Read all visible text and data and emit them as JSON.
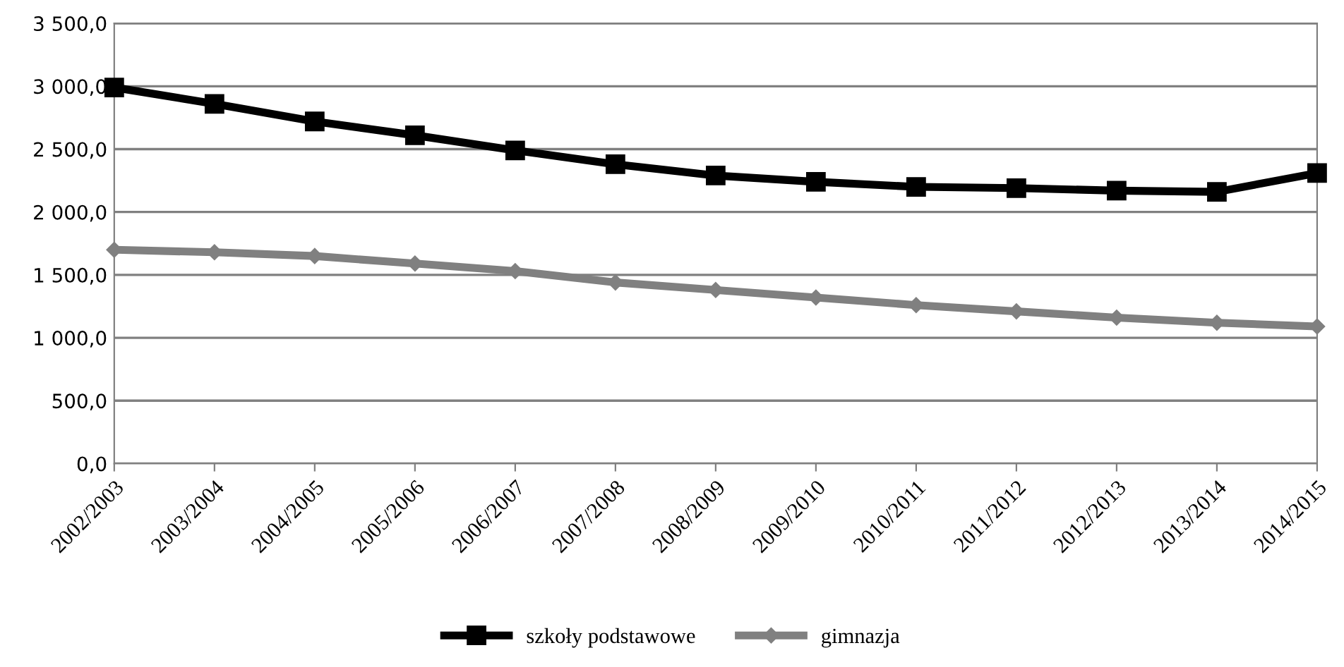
{
  "chart_data": {
    "type": "line",
    "categories": [
      "2002/2003",
      "2003/2004",
      "2004/2005",
      "2005/2006",
      "2006/2007",
      "2007/2008",
      "2008/2009",
      "2009/2010",
      "2010/2011",
      "2011/2012",
      "2012/2013",
      "2013/2014",
      "2014/2015"
    ],
    "series": [
      {
        "name": "szkoły podstawowe",
        "color": "#000000",
        "marker": "square",
        "values": [
          2990,
          2860,
          2720,
          2610,
          2490,
          2380,
          2290,
          2240,
          2200,
          2190,
          2170,
          2160,
          2310
        ]
      },
      {
        "name": "gimnazja",
        "color": "#808080",
        "marker": "diamond",
        "values": [
          1700,
          1680,
          1650,
          1590,
          1530,
          1440,
          1380,
          1320,
          1260,
          1210,
          1160,
          1120,
          1090
        ]
      }
    ],
    "ylim": [
      0,
      3500
    ],
    "yticks": [
      {
        "value": 0,
        "label": "0,0"
      },
      {
        "value": 500,
        "label": "500,0"
      },
      {
        "value": 1000,
        "label": "1 000,0"
      },
      {
        "value": 1500,
        "label": "1 500,0"
      },
      {
        "value": 2000,
        "label": "2 000,0"
      },
      {
        "value": 2500,
        "label": "2 500,0"
      },
      {
        "value": 3000,
        "label": "3 000,0"
      },
      {
        "value": 3500,
        "label": "3 500,0"
      }
    ],
    "grid": "y",
    "legend": "bottom",
    "line_style": "solid"
  }
}
